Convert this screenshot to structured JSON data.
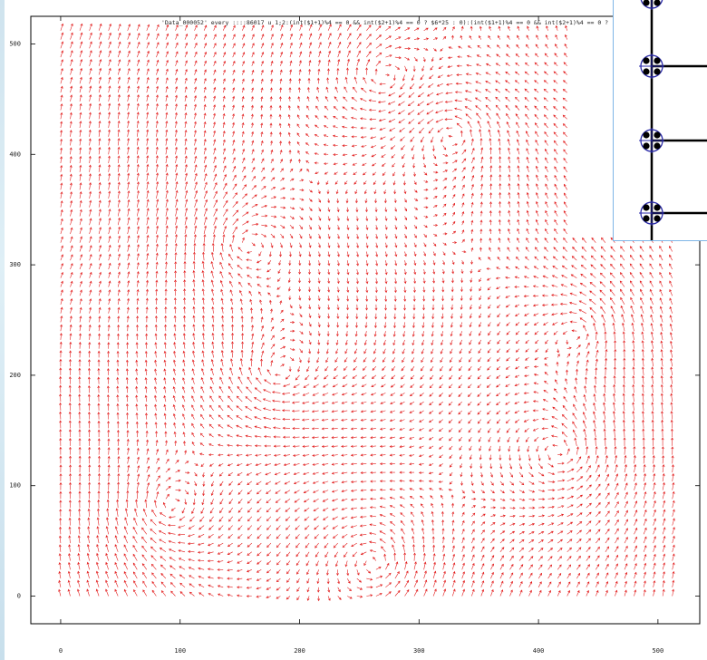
{
  "chart_data": {
    "type": "vector-field",
    "key_label": "'Data_000052' every ::::86017 u 1;2:(int($1+1)%4 == 0 && int($2+1)%4 == 0 ? $6*25 : 0):(int($1+1)%4 == 0 && int($2+1)%4 == 0 ?",
    "x_ticks": [
      0,
      100,
      200,
      300,
      400,
      500
    ],
    "y_ticks": [
      0,
      100,
      200,
      300,
      400,
      500
    ],
    "xlim": [
      -25,
      535
    ],
    "ylim": [
      -25,
      525
    ],
    "grid_extent": {
      "x": [
        0,
        512
      ],
      "y": [
        0,
        512
      ]
    },
    "grid_step": 4,
    "arrow_color": "#e21b1b",
    "vortex_centers": [
      {
        "x": 270,
        "y": 470
      },
      {
        "x": 330,
        "y": 420
      },
      {
        "x": 150,
        "y": 320
      },
      {
        "x": 440,
        "y": 240
      },
      {
        "x": 180,
        "y": 200
      },
      {
        "x": 420,
        "y": 130
      },
      {
        "x": 90,
        "y": 80
      },
      {
        "x": 265,
        "y": 30
      }
    ]
  },
  "inset": {
    "description_icon": "lattice-nodes-icon",
    "node_count": 4,
    "node_color": "#2a2aa8",
    "line_color": "#000000"
  }
}
